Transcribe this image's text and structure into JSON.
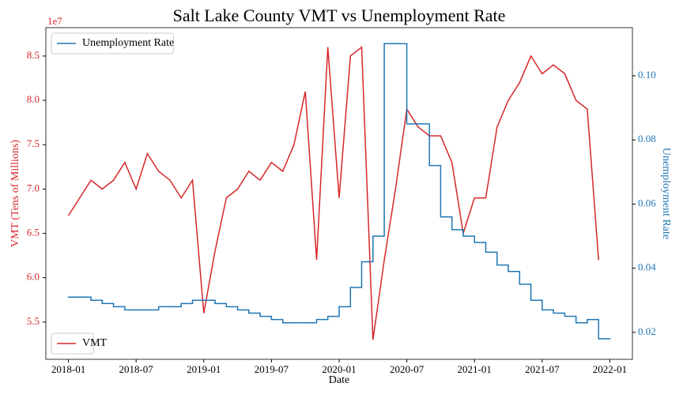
{
  "chart_data": {
    "type": "dual_axis_line",
    "title": "Salt Lake County VMT vs Unemployment Rate",
    "x_label": "Date",
    "y_label": "VMT (Tens of Millions)",
    "y2_label": "Unemployment Rate",
    "y_offset_label": "1e7",
    "x": [
      "2018-01",
      "2018-02",
      "2018-03",
      "2018-04",
      "2018-05",
      "2018-06",
      "2018-07",
      "2018-08",
      "2018-09",
      "2018-10",
      "2018-11",
      "2018-12",
      "2019-01",
      "2019-02",
      "2019-03",
      "2019-04",
      "2019-05",
      "2019-06",
      "2019-07",
      "2019-08",
      "2019-09",
      "2019-10",
      "2019-11",
      "2019-12",
      "2020-01",
      "2020-02",
      "2020-03",
      "2020-04",
      "2020-05",
      "2020-06",
      "2020-07",
      "2020-08",
      "2020-09",
      "2020-10",
      "2020-11",
      "2020-12",
      "2021-01",
      "2021-02",
      "2021-03",
      "2021-04",
      "2021-05",
      "2021-06",
      "2021-07",
      "2021-08",
      "2021-09",
      "2021-10",
      "2021-11",
      "2021-12"
    ],
    "series": [
      {
        "name": "VMT",
        "color": "#d62728",
        "axis": "y",
        "style": "line",
        "legend_loc": "lower left",
        "values": [
          6.7,
          6.9,
          7.1,
          7.0,
          7.1,
          7.3,
          7.0,
          7.4,
          7.2,
          7.1,
          6.9,
          7.1,
          5.6,
          6.3,
          6.9,
          7.0,
          7.2,
          7.1,
          7.3,
          7.2,
          7.5,
          8.1,
          6.2,
          8.6,
          6.9,
          8.5,
          8.6,
          5.3,
          6.2,
          7.0,
          7.9,
          7.7,
          7.6,
          7.6,
          7.3,
          6.5,
          6.9,
          6.9,
          7.7,
          8.0,
          8.2,
          8.5,
          8.3,
          8.4,
          8.3,
          8.0,
          7.9,
          6.2
        ]
      },
      {
        "name": "Unemployment Rate",
        "color": "#1f77b4",
        "axis": "y2",
        "style": "step",
        "legend_loc": "upper left",
        "values": [
          0.031,
          0.031,
          0.03,
          0.029,
          0.028,
          0.027,
          0.027,
          0.027,
          0.028,
          0.028,
          0.029,
          0.03,
          0.03,
          0.029,
          0.028,
          0.027,
          0.026,
          0.025,
          0.024,
          0.023,
          0.023,
          0.023,
          0.024,
          0.025,
          0.028,
          0.034,
          0.042,
          0.05,
          0.11,
          0.11,
          0.085,
          0.085,
          0.072,
          0.056,
          0.052,
          0.05,
          0.048,
          0.045,
          0.041,
          0.039,
          0.035,
          0.03,
          0.027,
          0.026,
          0.025,
          0.023,
          0.024,
          0.018
        ]
      }
    ],
    "xlim": [
      "2017-11",
      "2022-03"
    ],
    "xticks": [
      "2018-01",
      "2018-07",
      "2019-01",
      "2019-07",
      "2020-01",
      "2020-07",
      "2021-01",
      "2021-07",
      "2022-01"
    ],
    "ylim": [
      5.08,
      8.82
    ],
    "yticks": [
      5.5,
      {
        "value": 6,
        "label": "6.0"
      },
      6.5,
      {
        "value": 7,
        "label": "7.0"
      },
      7.5,
      {
        "value": 8,
        "label": "8.0"
      },
      8.5
    ],
    "y2lim": [
      0.0116,
      0.115
    ],
    "y2ticks": [
      0.02,
      0.04,
      0.06,
      0.08,
      {
        "value": 0.1,
        "label": "0.10"
      }
    ],
    "grid": false
  }
}
